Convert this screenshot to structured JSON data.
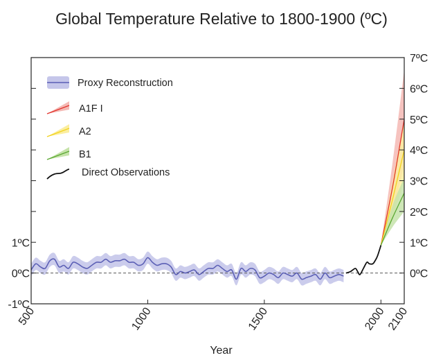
{
  "title": "Global Temperature Relative to 1800-1900 (ºC)",
  "chart_data": {
    "type": "line",
    "title": "Global Temperature Relative to 1800-1900 (ºC)",
    "xlabel": "Year",
    "ylabel": "",
    "xlim": [
      500,
      2100
    ],
    "ylim": [
      -1,
      7
    ],
    "x_ticks": [
      500,
      1000,
      1500,
      2000,
      2100
    ],
    "x_tick_labels": [
      "500",
      "1000",
      "1500",
      "2000",
      "2100"
    ],
    "y_ticks_left": [
      1,
      0,
      -1
    ],
    "y_tick_labels_left": [
      "1ºC",
      "0ºC",
      "-1ºC"
    ],
    "y_ticks_left_unlabeled": [
      2,
      3,
      4,
      5,
      6
    ],
    "y_ticks_right": [
      7,
      6,
      5,
      4,
      3,
      2,
      1,
      0
    ],
    "y_tick_labels_right": [
      "7ºC",
      "6ºC",
      "5ºC",
      "4ºC",
      "3ºC",
      "2ºC",
      "1ºC",
      "0ºC"
    ],
    "reference_line": 0,
    "legend": {
      "position": "top-left",
      "entries": [
        "Proxy Reconstruction",
        "A1F I",
        "A2",
        "B1",
        "Direct Observations"
      ]
    },
    "colors": {
      "proxy_line": "#5b5fb5",
      "proxy_band": "#c5c6ea",
      "observations": "#111111",
      "a1fi": "#e2322c",
      "a1fi_band": "#f4b9b4",
      "a2": "#f2d21c",
      "a2_band": "#fbeea0",
      "b1": "#5aa832",
      "b1_band": "#c6e3aa",
      "reference": "#555555"
    },
    "series": [
      {
        "name": "Proxy Reconstruction",
        "x": [
          500,
          520,
          540,
          560,
          580,
          600,
          620,
          640,
          660,
          680,
          700,
          720,
          740,
          760,
          780,
          800,
          820,
          840,
          860,
          880,
          900,
          920,
          940,
          960,
          980,
          1000,
          1020,
          1040,
          1060,
          1080,
          1100,
          1120,
          1140,
          1160,
          1180,
          1200,
          1220,
          1240,
          1260,
          1280,
          1300,
          1320,
          1340,
          1360,
          1380,
          1400,
          1420,
          1440,
          1460,
          1480,
          1500,
          1520,
          1540,
          1560,
          1580,
          1600,
          1620,
          1640,
          1660,
          1680,
          1700,
          1720,
          1740,
          1760,
          1780,
          1800,
          1820,
          1840
        ],
        "values": [
          0.1,
          0.3,
          0.2,
          0.15,
          0.4,
          0.45,
          0.2,
          0.25,
          0.15,
          0.35,
          0.3,
          0.2,
          0.15,
          0.25,
          0.35,
          0.35,
          0.45,
          0.35,
          0.4,
          0.4,
          0.45,
          0.35,
          0.35,
          0.25,
          0.3,
          0.5,
          0.35,
          0.25,
          0.3,
          0.3,
          0.2,
          -0.05,
          0.05,
          0.0,
          0.05,
          0.1,
          -0.05,
          0.05,
          0.15,
          0.15,
          0.25,
          0.15,
          0.05,
          0.1,
          -0.2,
          0.15,
          0.05,
          0.15,
          0.1,
          -0.15,
          -0.1,
          0.0,
          -0.05,
          -0.15,
          0.0,
          -0.05,
          -0.1,
          0.0,
          -0.2,
          -0.15,
          -0.1,
          -0.05,
          -0.2,
          0.0,
          -0.15,
          -0.1,
          -0.05,
          -0.1
        ],
        "uncertainty": 0.2
      },
      {
        "name": "Direct Observations",
        "x": [
          1850,
          1870,
          1890,
          1900,
          1910,
          1925,
          1940,
          1950,
          1965,
          1975,
          1985,
          2000
        ],
        "values": [
          0.0,
          0.05,
          0.15,
          0.05,
          -0.05,
          0.15,
          0.35,
          0.3,
          0.3,
          0.4,
          0.55,
          0.9
        ]
      },
      {
        "name": "A1F I",
        "x": [
          2000,
          2050,
          2100
        ],
        "values": [
          0.9,
          2.8,
          5.0
        ],
        "lower": [
          0.9,
          2.0,
          3.5
        ],
        "upper": [
          0.9,
          3.6,
          6.6
        ]
      },
      {
        "name": "A2",
        "x": [
          2000,
          2050,
          2100
        ],
        "values": [
          0.9,
          2.4,
          4.0
        ],
        "lower": [
          0.9,
          1.8,
          3.0
        ],
        "upper": [
          0.9,
          3.0,
          5.0
        ]
      },
      {
        "name": "B1",
        "x": [
          2000,
          2050,
          2100
        ],
        "values": [
          0.9,
          1.8,
          2.6
        ],
        "lower": [
          0.9,
          1.5,
          2.0
        ],
        "upper": [
          0.9,
          2.2,
          3.1
        ]
      }
    ]
  }
}
